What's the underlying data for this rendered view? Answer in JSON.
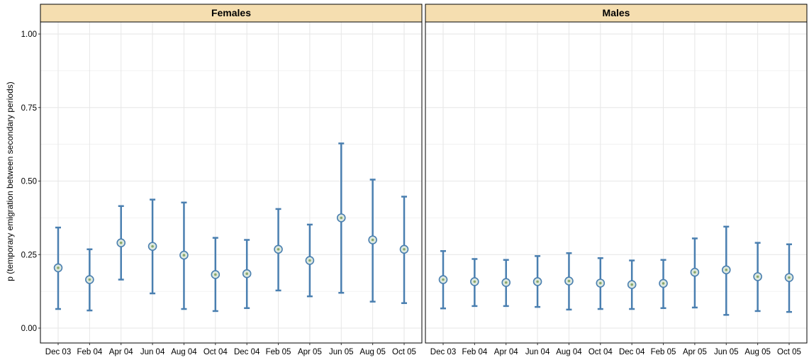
{
  "chart_data": {
    "type": "scatter",
    "ylabel": "p (temporary emigration between secondary periods)",
    "ylim": [
      0,
      1
    ],
    "yticks": [
      "0.00",
      "0.25",
      "0.50",
      "0.75",
      "1.00"
    ],
    "ytick_values": [
      0,
      0.25,
      0.5,
      0.75,
      1.0
    ],
    "categories": [
      "Dec 03",
      "Feb 04",
      "Apr 04",
      "Jun 04",
      "Aug 04",
      "Oct 04",
      "Dec 04",
      "Feb 05",
      "Apr 05",
      "Jun 05",
      "Aug 05",
      "Oct 05"
    ],
    "grid": true,
    "colors": {
      "errorbar": "#4a7fb0",
      "point_fill": "#dde8de",
      "point_center": "#8aa86c",
      "strip_fill": "#f5deb0",
      "grid": "#e6e6e6"
    },
    "panels": [
      {
        "title": "Females",
        "estimate": [
          0.205,
          0.165,
          0.29,
          0.278,
          0.248,
          0.182,
          0.185,
          0.268,
          0.23,
          0.375,
          0.3,
          0.268
        ],
        "lower": [
          0.065,
          0.06,
          0.165,
          0.118,
          0.065,
          0.058,
          0.068,
          0.128,
          0.108,
          0.12,
          0.09,
          0.085
        ],
        "upper": [
          0.342,
          0.268,
          0.415,
          0.437,
          0.427,
          0.307,
          0.3,
          0.405,
          0.352,
          0.628,
          0.505,
          0.447
        ]
      },
      {
        "title": "Males",
        "estimate": [
          0.165,
          0.158,
          0.155,
          0.158,
          0.16,
          0.153,
          0.148,
          0.152,
          0.19,
          0.198,
          0.175,
          0.172
        ],
        "lower": [
          0.067,
          0.075,
          0.075,
          0.072,
          0.063,
          0.065,
          0.065,
          0.068,
          0.07,
          0.045,
          0.058,
          0.055
        ],
        "upper": [
          0.262,
          0.235,
          0.232,
          0.245,
          0.255,
          0.238,
          0.23,
          0.232,
          0.305,
          0.345,
          0.29,
          0.285
        ]
      }
    ]
  }
}
